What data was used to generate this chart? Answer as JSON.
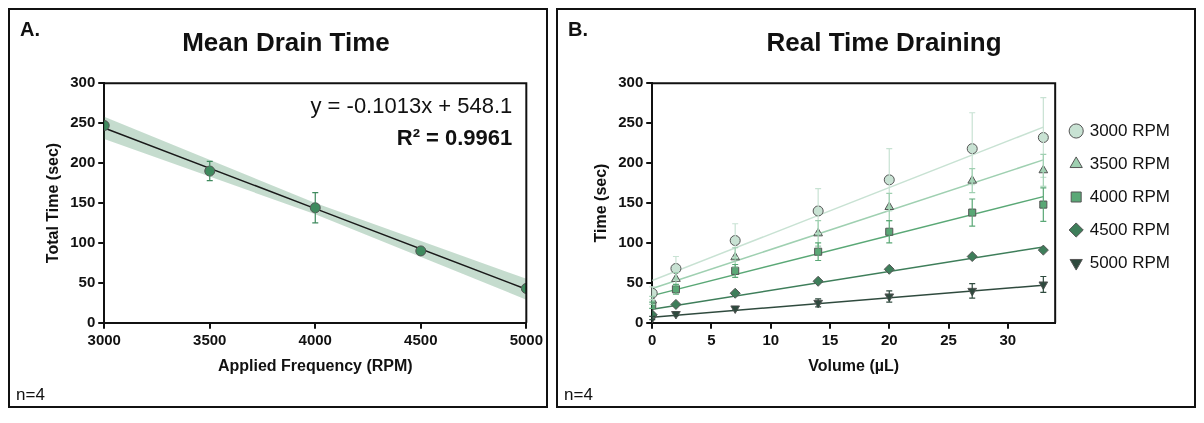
{
  "chart_data": [
    {
      "type": "scatter",
      "title": "Mean Drain Time",
      "xlabel": "Applied Frequency (RPM)",
      "ylabel": "Total Time (sec)",
      "xlim": [
        3000,
        5000
      ],
      "xticks": [
        3000,
        3500,
        4000,
        4500,
        5000
      ],
      "ylim": [
        0,
        300
      ],
      "yticks": [
        0,
        50,
        100,
        150,
        200,
        250,
        300
      ],
      "grid": false,
      "legend": false,
      "annotations": [
        "A.",
        "y = -0.1013x + 548.1",
        "R² = 0.9961",
        "n=4"
      ],
      "series": [
        {
          "type": "line",
          "color": "#1a1a1a",
          "x": [
            3000,
            4000,
            5000
          ],
          "values": [
            244,
            143,
            42
          ],
          "lower": [
            230,
            136,
            29
          ],
          "upper": [
            258,
            150,
            55
          ]
        },
        {
          "marker": "circle",
          "color": "#3f8a5e",
          "x": [
            3000,
            3500,
            4000,
            4500,
            5000
          ],
          "values": [
            247,
            190,
            144,
            90,
            43
          ],
          "errors": [
            null,
            12,
            19,
            null,
            null
          ]
        }
      ]
    },
    {
      "type": "scatter",
      "title": "Real Time Draining",
      "xlabel": "Volume (µL)",
      "ylabel": "Time (sec)",
      "xlim": [
        0,
        34
      ],
      "xticks": [
        0,
        5,
        10,
        15,
        20,
        25,
        30
      ],
      "ylim": [
        0,
        300
      ],
      "yticks": [
        0,
        50,
        100,
        150,
        200,
        250,
        300
      ],
      "grid": false,
      "legend": "right",
      "annotations": [
        "B.",
        "n=4"
      ],
      "x": [
        0,
        2,
        7,
        14,
        20,
        27,
        33
      ],
      "series": [
        {
          "type": "line",
          "color": "#c8e2d3",
          "x": [
            0,
            33
          ],
          "values": [
            53,
            245
          ]
        },
        {
          "type": "line",
          "color": "#9fd0b1",
          "x": [
            0,
            33
          ],
          "values": [
            43,
            204
          ]
        },
        {
          "type": "line",
          "color": "#5aa876",
          "x": [
            0,
            33
          ],
          "values": [
            34,
            158
          ]
        },
        {
          "type": "line",
          "color": "#3e7e5a",
          "x": [
            0,
            33
          ],
          "values": [
            17,
            95
          ]
        },
        {
          "type": "line",
          "color": "#2f4a3e",
          "x": [
            0,
            33
          ],
          "values": [
            7,
            47
          ]
        },
        {
          "name": "3000 RPM",
          "marker": "circle",
          "color": "#c8e2d3",
          "values": [
            37,
            68,
            103,
            140,
            179,
            218,
            232
          ],
          "errors": [
            8,
            15,
            21,
            28,
            39,
            45,
            50
          ]
        },
        {
          "name": "3500 RPM",
          "marker": "triangle",
          "color": "#9fd0b1",
          "values": [
            28,
            55,
            82,
            112,
            145,
            178,
            191
          ],
          "errors": [
            5,
            8,
            12,
            16,
            17,
            15,
            20
          ]
        },
        {
          "name": "4000 RPM",
          "marker": "square",
          "color": "#5aa876",
          "values": [
            22,
            42,
            65,
            89,
            114,
            138,
            148
          ],
          "errors": [
            4,
            6,
            8,
            11,
            14,
            17,
            21
          ]
        },
        {
          "name": "4500 RPM",
          "marker": "diamond",
          "color": "#3e7e5a",
          "values": [
            10,
            23,
            37,
            52,
            67,
            83,
            91
          ],
          "errors": [
            null,
            null,
            null,
            null,
            null,
            null,
            null
          ]
        },
        {
          "name": "5000 RPM",
          "marker": "triangle_down",
          "color": "#2f4a3e",
          "values": [
            6,
            11,
            18,
            25,
            33,
            40,
            48
          ],
          "errors": [
            2,
            2,
            2,
            5,
            7,
            9,
            10
          ]
        }
      ]
    }
  ]
}
